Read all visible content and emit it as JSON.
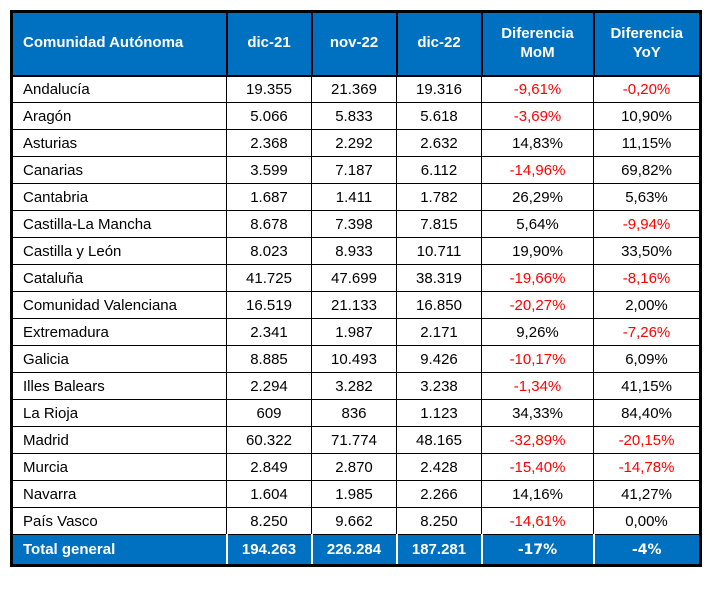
{
  "colors": {
    "header_bg": "#0070C0",
    "negative": "#FF0000",
    "total_text": "#FFFFFF",
    "body_text": "#000000"
  },
  "chart_data": {
    "type": "table",
    "columns": [
      "Comunidad Autónoma",
      "dic-21",
      "nov-22",
      "dic-22",
      "Diferencia MoM",
      "Diferencia YoY"
    ],
    "rows": [
      {
        "name": "Andalucía",
        "dic21": "19.355",
        "nov22": "21.369",
        "dic22": "19.316",
        "mom": "-9,61%",
        "yoy": "-0,20%"
      },
      {
        "name": "Aragón",
        "dic21": "5.066",
        "nov22": "5.833",
        "dic22": "5.618",
        "mom": "-3,69%",
        "yoy": "10,90%"
      },
      {
        "name": "Asturias",
        "dic21": "2.368",
        "nov22": "2.292",
        "dic22": "2.632",
        "mom": "14,83%",
        "yoy": "11,15%"
      },
      {
        "name": "Canarias",
        "dic21": "3.599",
        "nov22": "7.187",
        "dic22": "6.112",
        "mom": "-14,96%",
        "yoy": "69,82%"
      },
      {
        "name": "Cantabria",
        "dic21": "1.687",
        "nov22": "1.411",
        "dic22": "1.782",
        "mom": "26,29%",
        "yoy": "5,63%"
      },
      {
        "name": "Castilla-La Mancha",
        "dic21": "8.678",
        "nov22": "7.398",
        "dic22": "7.815",
        "mom": "5,64%",
        "yoy": "-9,94%"
      },
      {
        "name": "Castilla y León",
        "dic21": "8.023",
        "nov22": "8.933",
        "dic22": "10.711",
        "mom": "19,90%",
        "yoy": "33,50%"
      },
      {
        "name": "Cataluña",
        "dic21": "41.725",
        "nov22": "47.699",
        "dic22": "38.319",
        "mom": "-19,66%",
        "yoy": "-8,16%"
      },
      {
        "name": "Comunidad Valenciana",
        "dic21": "16.519",
        "nov22": "21.133",
        "dic22": "16.850",
        "mom": "-20,27%",
        "yoy": "2,00%"
      },
      {
        "name": "Extremadura",
        "dic21": "2.341",
        "nov22": "1.987",
        "dic22": "2.171",
        "mom": "9,26%",
        "yoy": "-7,26%"
      },
      {
        "name": "Galicia",
        "dic21": "8.885",
        "nov22": "10.493",
        "dic22": "9.426",
        "mom": "-10,17%",
        "yoy": "6,09%"
      },
      {
        "name": "Illes Balears",
        "dic21": "2.294",
        "nov22": "3.282",
        "dic22": "3.238",
        "mom": "-1,34%",
        "yoy": "41,15%"
      },
      {
        "name": "La Rioja",
        "dic21": "609",
        "nov22": "836",
        "dic22": "1.123",
        "mom": "34,33%",
        "yoy": "84,40%"
      },
      {
        "name": "Madrid",
        "dic21": "60.322",
        "nov22": "71.774",
        "dic22": "48.165",
        "mom": "-32,89%",
        "yoy": "-20,15%"
      },
      {
        "name": "Murcia",
        "dic21": "2.849",
        "nov22": "2.870",
        "dic22": "2.428",
        "mom": "-15,40%",
        "yoy": "-14,78%"
      },
      {
        "name": "Navarra",
        "dic21": "1.604",
        "nov22": "1.985",
        "dic22": "2.266",
        "mom": "14,16%",
        "yoy": "41,27%"
      },
      {
        "name": "País Vasco",
        "dic21": "8.250",
        "nov22": "9.662",
        "dic22": "8.250",
        "mom": "-14,61%",
        "yoy": "0,00%"
      }
    ],
    "total": {
      "name": "Total general",
      "dic21": "194.263",
      "nov22": "226.284",
      "dic22": "187.281",
      "mom": "-17%",
      "yoy": "-4%"
    }
  }
}
